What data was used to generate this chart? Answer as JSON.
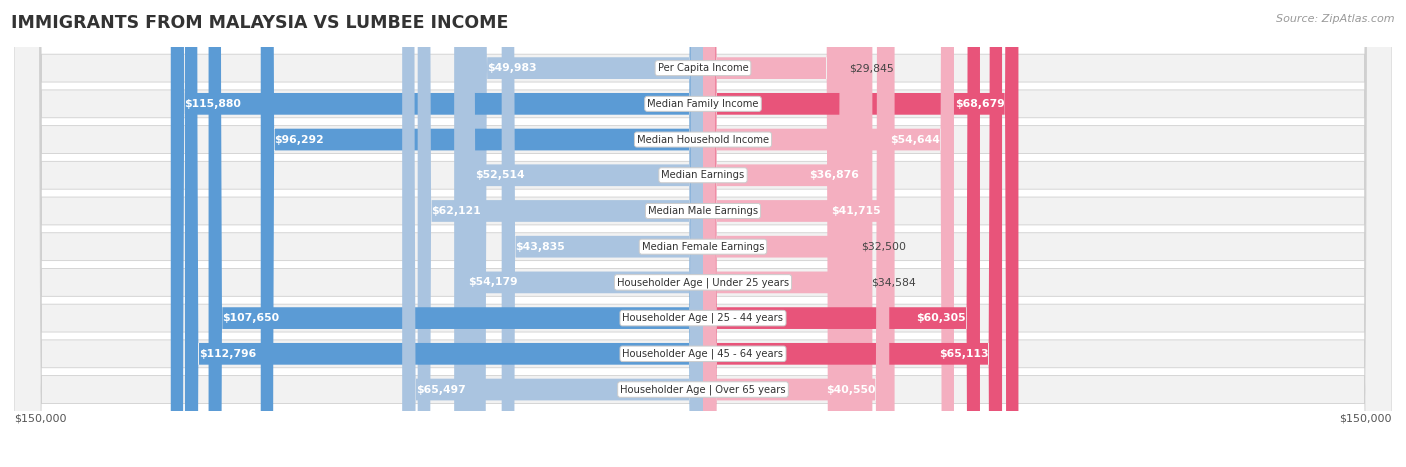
{
  "title": "IMMIGRANTS FROM MALAYSIA VS LUMBEE INCOME",
  "source": "Source: ZipAtlas.com",
  "categories": [
    "Per Capita Income",
    "Median Family Income",
    "Median Household Income",
    "Median Earnings",
    "Median Male Earnings",
    "Median Female Earnings",
    "Householder Age | Under 25 years",
    "Householder Age | 25 - 44 years",
    "Householder Age | 45 - 64 years",
    "Householder Age | Over 65 years"
  ],
  "malaysia_values": [
    49983,
    115880,
    96292,
    52514,
    62121,
    43835,
    54179,
    107650,
    112796,
    65497
  ],
  "lumbee_values": [
    29845,
    68679,
    54644,
    36876,
    41715,
    32500,
    34584,
    60305,
    65113,
    40550
  ],
  "malaysia_color_light": "#aac4e0",
  "malaysia_color_dark": "#5b9bd5",
  "lumbee_color_light": "#f4afc0",
  "lumbee_color_dark": "#e8547a",
  "malaysia_label": "Immigrants from Malaysia",
  "lumbee_label": "Lumbee",
  "max_value": 150000,
  "malaysia_threshold": 80000,
  "lumbee_threshold": 55000,
  "bg_color": "#ffffff",
  "row_bg": "#f2f2f2",
  "row_border": "#d0d0d0",
  "axis_label_left": "$150,000",
  "axis_label_right": "$150,000"
}
